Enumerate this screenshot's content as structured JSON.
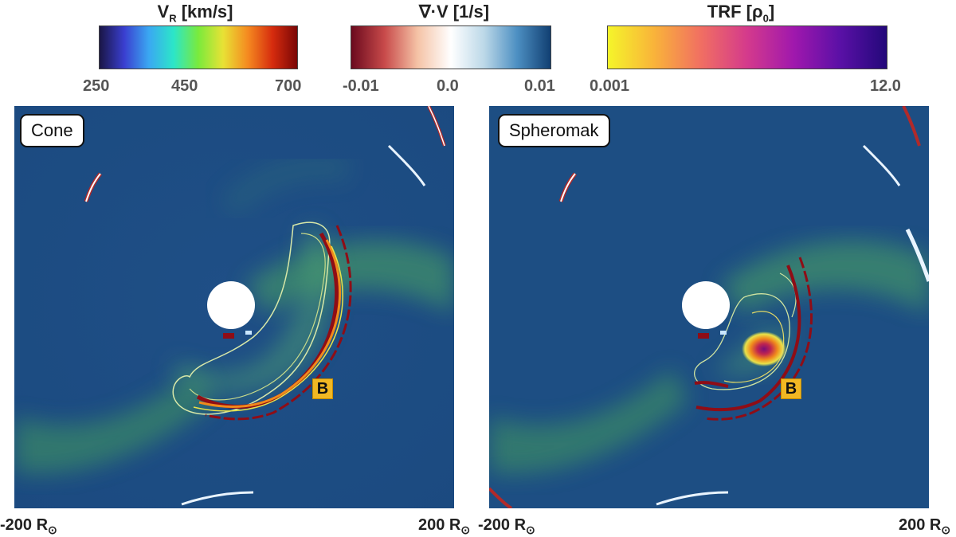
{
  "colorbars": {
    "vr": {
      "title_main": "V",
      "title_sub": "R",
      "title_unit": " [km/s]",
      "ticks": [
        "250",
        "450",
        "700"
      ],
      "colors": [
        "#1a1646",
        "#3a3fd0",
        "#3aa8f2",
        "#2ce6c8",
        "#7aea3c",
        "#e8e235",
        "#f58a20",
        "#d62c0e",
        "#7a0606"
      ]
    },
    "div": {
      "title": "∇·V [1/s]",
      "ticks": [
        "-0.01",
        "0.0",
        "0.01"
      ],
      "colors": [
        "#6b0a1e",
        "#c84a4a",
        "#f5c3a6",
        "#ffffff",
        "#bcd8e8",
        "#4c8fc2",
        "#113f72"
      ]
    },
    "trf": {
      "title_main": "TRF [ρ",
      "title_sub": "0",
      "title_end": "]",
      "ticks": [
        "0.001",
        "12.0"
      ],
      "colors": [
        "#f5f52a",
        "#f9b33a",
        "#f16f62",
        "#d43a8c",
        "#a018ad",
        "#5a10a6",
        "#23087a"
      ]
    }
  },
  "panels": {
    "left": {
      "label": "Cone",
      "marker": "B"
    },
    "right": {
      "label": "Spheromak",
      "marker": "B"
    }
  },
  "axes": {
    "left_min": "-200 R",
    "left_max": "200 R",
    "right_min": "-200 R",
    "right_max": "200 R",
    "sun_symbol": "⊙"
  }
}
